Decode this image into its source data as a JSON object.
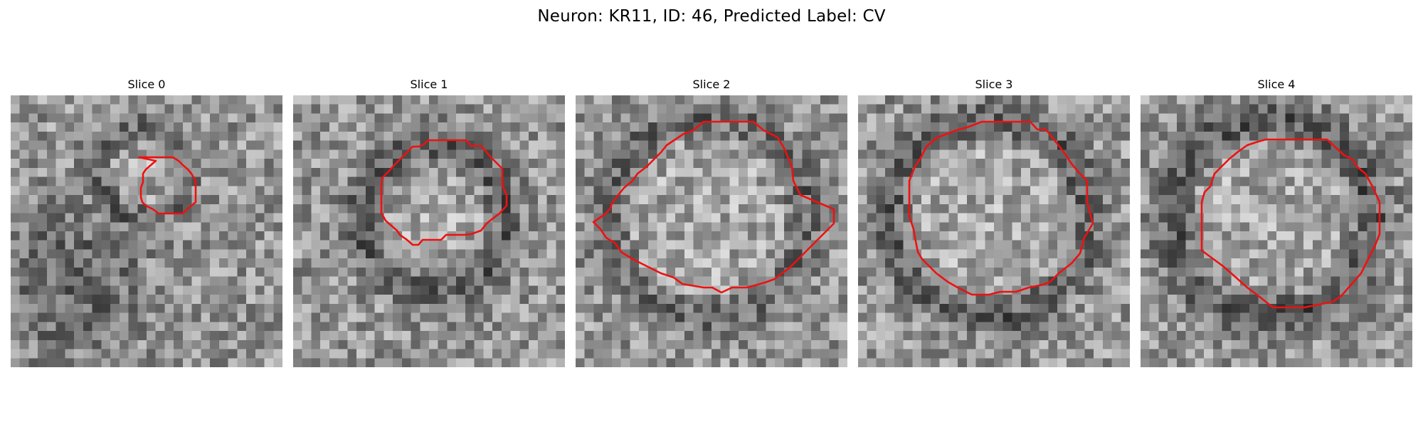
{
  "figure": {
    "title": "Neuron: KR11, ID: 46, Predicted Label: CV",
    "contour_color": "#ee1111",
    "colormap": "gray"
  },
  "slices": [
    {
      "title": "Slice 0"
    },
    {
      "title": "Slice 1"
    },
    {
      "title": "Slice 2"
    },
    {
      "title": "Slice 3"
    },
    {
      "title": "Slice 4"
    }
  ]
}
